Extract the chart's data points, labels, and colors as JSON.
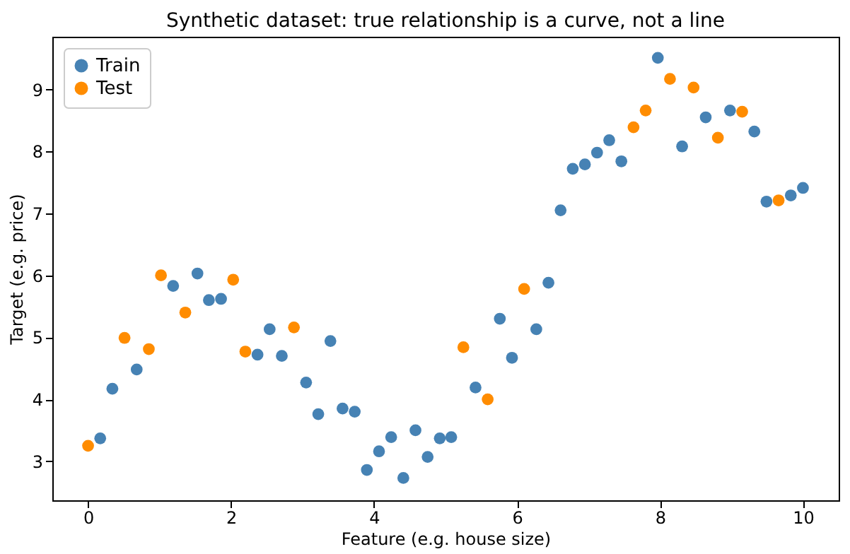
{
  "chart_data": {
    "type": "scatter",
    "title": "Synthetic dataset: true relationship is a curve, not a line",
    "xlabel": "Feature (e.g. house size)",
    "ylabel": "Target (e.g. price)",
    "xlim": [
      -0.5,
      10.5
    ],
    "ylim": [
      2.37,
      9.85
    ],
    "xticks": [
      0,
      2,
      4,
      6,
      8,
      10
    ],
    "yticks": [
      3,
      4,
      5,
      6,
      7,
      8,
      9
    ],
    "grid": false,
    "legend": "top left",
    "marker": "circle",
    "series": [
      {
        "name": "Train",
        "color": "#4682b4",
        "x": [
          0.17,
          0.34,
          0.68,
          1.19,
          1.53,
          1.69,
          1.86,
          2.37,
          2.54,
          2.71,
          3.05,
          3.22,
          3.39,
          3.56,
          3.73,
          3.9,
          4.07,
          4.24,
          4.41,
          4.58,
          4.75,
          4.92,
          5.08,
          5.42,
          5.76,
          5.93,
          6.27,
          6.44,
          6.61,
          6.78,
          6.95,
          7.12,
          7.29,
          7.46,
          7.97,
          8.31,
          8.64,
          8.98,
          9.32,
          9.49,
          9.83,
          10.0
        ],
        "values": [
          3.37,
          4.17,
          4.48,
          5.83,
          6.03,
          5.6,
          5.62,
          4.72,
          5.13,
          4.7,
          4.27,
          3.76,
          4.94,
          3.85,
          3.8,
          2.86,
          3.16,
          3.39,
          2.73,
          3.5,
          3.07,
          3.37,
          3.39,
          4.19,
          5.3,
          4.67,
          5.13,
          5.88,
          7.05,
          7.72,
          7.79,
          7.98,
          8.18,
          7.84,
          9.51,
          8.08,
          8.55,
          8.66,
          8.32,
          7.19,
          7.29,
          7.41
        ]
      },
      {
        "name": "Test",
        "color": "#ff8c00",
        "x": [
          0.0,
          0.51,
          0.85,
          1.02,
          1.36,
          2.03,
          2.2,
          2.88,
          5.25,
          5.59,
          6.1,
          7.63,
          7.8,
          8.14,
          8.47,
          8.81,
          9.15,
          9.66
        ],
        "values": [
          3.25,
          4.99,
          4.81,
          6.0,
          5.4,
          5.93,
          4.77,
          5.16,
          4.84,
          4.0,
          5.78,
          8.39,
          8.66,
          9.17,
          9.03,
          8.22,
          8.64,
          7.21
        ]
      }
    ]
  }
}
